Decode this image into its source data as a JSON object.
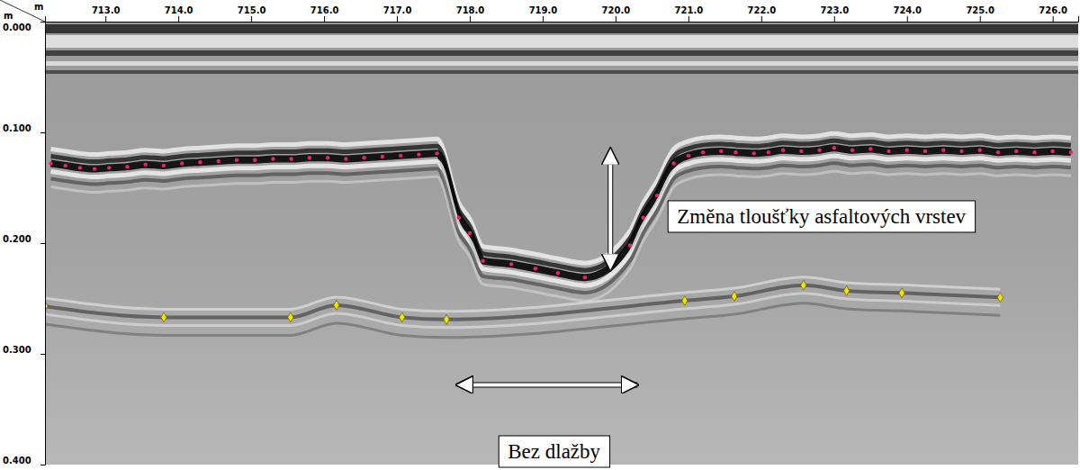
{
  "chart_data": {
    "type": "scatter",
    "xlabel": "m",
    "ylabel": "m",
    "xlim": [
      712.17,
      726.35
    ],
    "ylim": [
      0,
      0.4
    ],
    "xticks": [
      {
        "value": 713,
        "label": "713.0"
      },
      {
        "value": 714,
        "label": "714.0"
      },
      {
        "value": 715,
        "label": "715.0"
      },
      {
        "value": 716,
        "label": "716.0"
      },
      {
        "value": 717,
        "label": "717.0"
      },
      {
        "value": 718,
        "label": "718.0"
      },
      {
        "value": 719,
        "label": "719.0"
      },
      {
        "value": 720,
        "label": "720.0"
      },
      {
        "value": 721,
        "label": "721.0"
      },
      {
        "value": 722,
        "label": "722.0"
      },
      {
        "value": 723,
        "label": "723.0"
      },
      {
        "value": 724,
        "label": "724.0"
      },
      {
        "value": 725,
        "label": "725.0"
      },
      {
        "value": 726,
        "label": "726.0"
      }
    ],
    "yticks": [
      {
        "value": 0,
        "label": "0.000"
      },
      {
        "value": 0.1,
        "label": "0.100"
      },
      {
        "value": 0.2,
        "label": "0.200"
      },
      {
        "value": 0.3,
        "label": "0.300"
      },
      {
        "value": 0.4,
        "label": "0.400"
      }
    ],
    "series": [
      {
        "color": "#e8255e",
        "marker": "circle",
        "x": [
          712.25,
          712.45,
          712.65,
          712.85,
          713.05,
          713.3,
          713.55,
          713.8,
          714.05,
          714.3,
          714.55,
          714.8,
          715.05,
          715.3,
          715.55,
          715.8,
          716.05,
          716.3,
          716.55,
          716.8,
          717.05,
          717.3,
          717.55,
          717.85,
          718.0,
          718.18,
          718.57,
          718.9,
          719.21,
          719.58,
          720.2,
          720.38,
          720.57,
          720.8,
          721.0,
          721.2,
          721.45,
          721.65,
          721.9,
          722.1,
          722.3,
          722.55,
          722.8,
          723.0,
          723.25,
          723.5,
          723.75,
          724.0,
          724.25,
          724.5,
          724.75,
          725.0,
          725.25,
          725.5,
          725.75,
          726.0,
          726.25
        ],
        "values": [
          0.128,
          0.13,
          0.132,
          0.133,
          0.132,
          0.131,
          0.129,
          0.13,
          0.128,
          0.127,
          0.126,
          0.125,
          0.125,
          0.124,
          0.124,
          0.123,
          0.123,
          0.124,
          0.123,
          0.122,
          0.121,
          0.12,
          0.119,
          0.177,
          0.191,
          0.216,
          0.219,
          0.223,
          0.227,
          0.231,
          0.202,
          0.177,
          0.157,
          0.128,
          0.121,
          0.118,
          0.117,
          0.118,
          0.119,
          0.118,
          0.116,
          0.117,
          0.116,
          0.114,
          0.116,
          0.115,
          0.117,
          0.116,
          0.117,
          0.116,
          0.117,
          0.116,
          0.118,
          0.117,
          0.118,
          0.117,
          0.118
        ]
      },
      {
        "color": "#f2e600",
        "marker": "diamond",
        "x": [
          712.17,
          713.8,
          715.54,
          716.17,
          717.07,
          717.68,
          720.95,
          721.63,
          722.58,
          723.17,
          723.93,
          725.28
        ],
        "values": [
          0.257,
          0.267,
          0.267,
          0.256,
          0.267,
          0.269,
          0.252,
          0.248,
          0.238,
          0.243,
          0.245,
          0.249
        ]
      }
    ],
    "annotations": [
      {
        "text": "Změna tloušťky asfaltových vrstev",
        "x": 719.93,
        "y": [
          0.128,
          0.224
        ]
      },
      {
        "text": "Bez dlažby",
        "x": [
          718.02,
          720.3
        ],
        "y": 0.328
      }
    ]
  }
}
